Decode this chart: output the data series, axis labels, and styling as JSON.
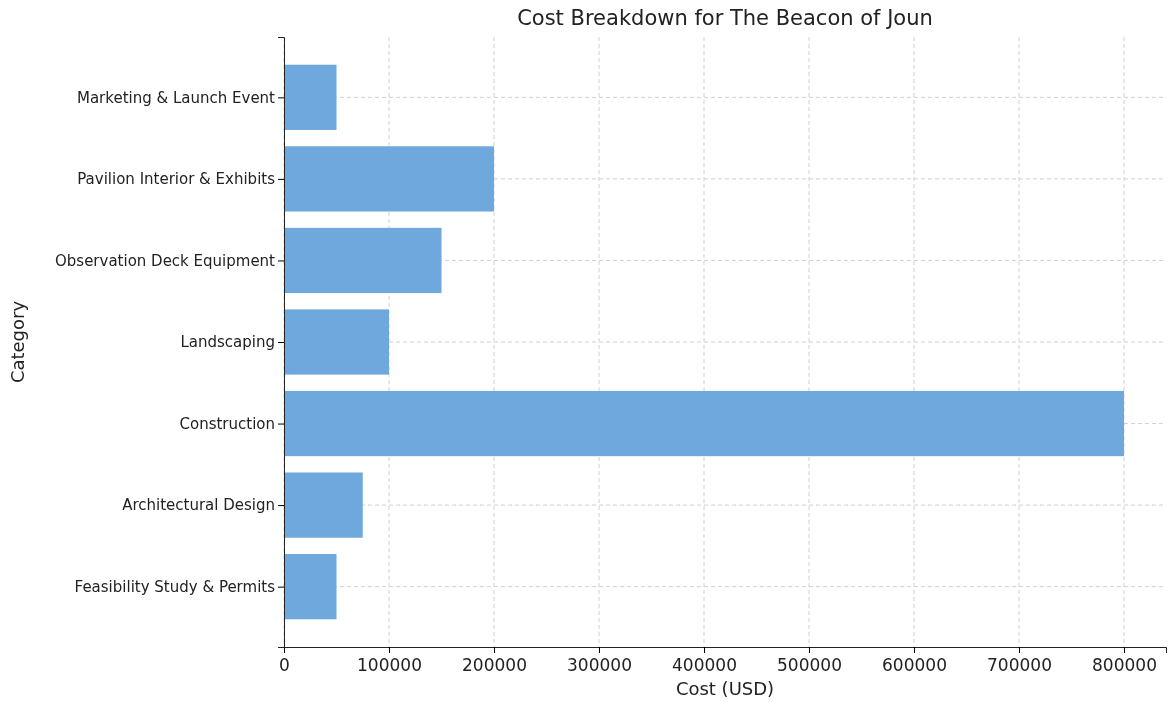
{
  "chart_data": {
    "type": "bar",
    "orientation": "horizontal",
    "title": "Cost Breakdown for The Beacon of Joun",
    "xlabel": "Cost (USD)",
    "ylabel": "Category",
    "categories": [
      "Marketing & Launch Event",
      "Pavilion Interior & Exhibits",
      "Observation Deck Equipment",
      "Landscaping",
      "Construction",
      "Architectural Design",
      "Feasibility Study & Permits"
    ],
    "values": [
      50000,
      200000,
      150000,
      100000,
      800000,
      75000,
      50000
    ],
    "color": "#6fa8dc",
    "xlim": [
      0,
      840000
    ],
    "xticks": [
      0,
      100000,
      200000,
      300000,
      400000,
      500000,
      600000,
      700000,
      800000
    ],
    "grid": true
  }
}
